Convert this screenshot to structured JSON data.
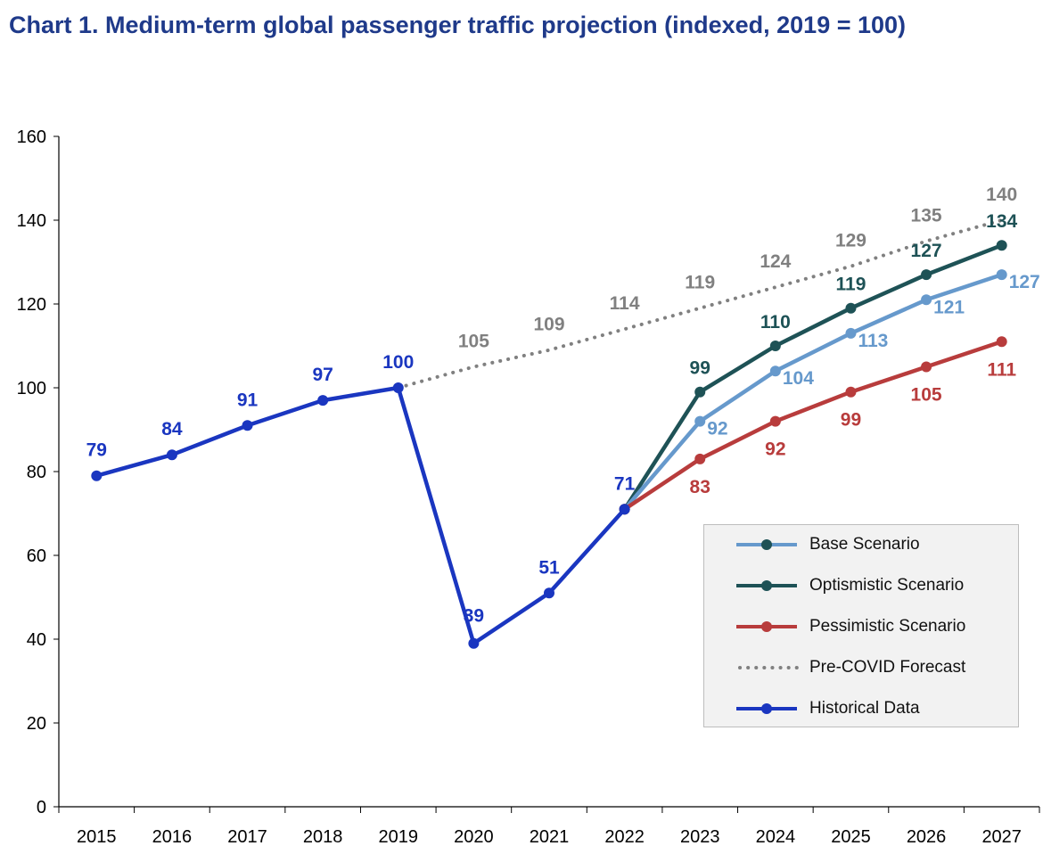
{
  "chart_data": {
    "type": "line",
    "title": "Chart 1. Medium-term global passenger traffic projection (indexed, 2019 = 100)",
    "xlabel": "",
    "ylabel": "",
    "ylim": [
      0,
      160
    ],
    "yticks": [
      0,
      20,
      40,
      60,
      80,
      100,
      120,
      140,
      160
    ],
    "categories": [
      "2015",
      "2016",
      "2017",
      "2018",
      "2019",
      "2020",
      "2021",
      "2022",
      "2023",
      "2024",
      "2025",
      "2026",
      "2027"
    ],
    "grid": false,
    "legend_position": "bottom-right",
    "series": [
      {
        "name": "Pre-COVID Forecast",
        "color": "#808080",
        "style": "dotted",
        "markers": false,
        "x": [
          "2019",
          "2020",
          "2021",
          "2022",
          "2023",
          "2024",
          "2025",
          "2026",
          "2027"
        ],
        "values": [
          100,
          105,
          109,
          114,
          119,
          124,
          129,
          135,
          140
        ],
        "labels": [
          "",
          "105",
          "109",
          "114",
          "119",
          "124",
          "129",
          "135",
          "140"
        ]
      },
      {
        "name": "Optismistic Scenario",
        "color": "#1e5256",
        "style": "solid",
        "markers": true,
        "x": [
          "2022",
          "2023",
          "2024",
          "2025",
          "2026",
          "2027"
        ],
        "values": [
          71,
          99,
          110,
          119,
          127,
          134
        ],
        "labels": [
          "",
          "99",
          "110",
          "119",
          "127",
          "134"
        ]
      },
      {
        "name": "Base Scenario",
        "color": "#6699cc",
        "style": "solid",
        "markers": true,
        "x": [
          "2022",
          "2023",
          "2024",
          "2025",
          "2026",
          "2027"
        ],
        "values": [
          71,
          92,
          104,
          113,
          121,
          127
        ],
        "labels": [
          "",
          "92",
          "104",
          "113",
          "121",
          "127"
        ]
      },
      {
        "name": "Pessimistic Scenario",
        "color": "#b83c3c",
        "style": "solid",
        "markers": true,
        "x": [
          "2022",
          "2023",
          "2024",
          "2025",
          "2026",
          "2027"
        ],
        "values": [
          71,
          83,
          92,
          99,
          105,
          111
        ],
        "labels": [
          "",
          "83",
          "92",
          "99",
          "105",
          "111"
        ]
      },
      {
        "name": "Historical Data",
        "color": "#1a36c0",
        "style": "solid",
        "markers": true,
        "x": [
          "2015",
          "2016",
          "2017",
          "2018",
          "2019",
          "2020",
          "2021",
          "2022"
        ],
        "values": [
          79,
          84,
          91,
          97,
          100,
          39,
          51,
          71
        ],
        "labels": [
          "79",
          "84",
          "91",
          "97",
          "100",
          "39",
          "51",
          "71"
        ]
      }
    ]
  },
  "legend": [
    {
      "label": "Base Scenario",
      "color": "#6699cc",
      "marker": "#1e5256",
      "style": "solid"
    },
    {
      "label": "Optismistic Scenario",
      "color": "#1e5256",
      "marker": "#1e5256",
      "style": "solid"
    },
    {
      "label": "Pessimistic Scenario",
      "color": "#b83c3c",
      "marker": "#b83c3c",
      "style": "solid"
    },
    {
      "label": "Pre-COVID Forecast",
      "color": "#808080",
      "marker": "",
      "style": "dotted"
    },
    {
      "label": "Historical Data",
      "color": "#1a36c0",
      "marker": "#1a36c0",
      "style": "solid"
    }
  ]
}
